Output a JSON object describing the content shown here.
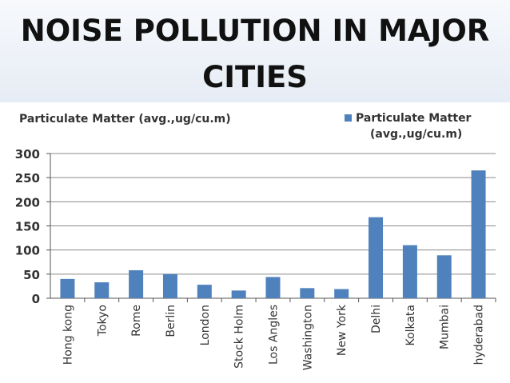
{
  "header": {
    "title": "NOISE POLLUTION IN MAJOR CITIES"
  },
  "chart_data": {
    "type": "bar",
    "title": "Particulate Matter (avg.,ug/cu.m)",
    "legend": {
      "label": "Particulate Matter (avg.,ug/cu.m)",
      "position": "top-right"
    },
    "categories": [
      "Hong kong",
      "Tokyo",
      "Rome",
      "Berlin",
      "London",
      "Stock Holm",
      "Los Angles",
      "Washington",
      "New York",
      "Delhi",
      "Kolkata",
      "Mumbai",
      "hyderabad"
    ],
    "series": [
      {
        "name": "Particulate Matter (avg.,ug/cu.m)",
        "values": [
          40,
          33,
          58,
          50,
          28,
          16,
          44,
          21,
          19,
          168,
          110,
          89,
          265
        ]
      }
    ],
    "ylim": [
      0,
      300
    ],
    "yticks": [
      0,
      50,
      100,
      150,
      200,
      250,
      300
    ],
    "grid": true,
    "colors": {
      "bar": "#4f81bd",
      "grid": "#8a8a8a",
      "axis": "#555555"
    }
  }
}
